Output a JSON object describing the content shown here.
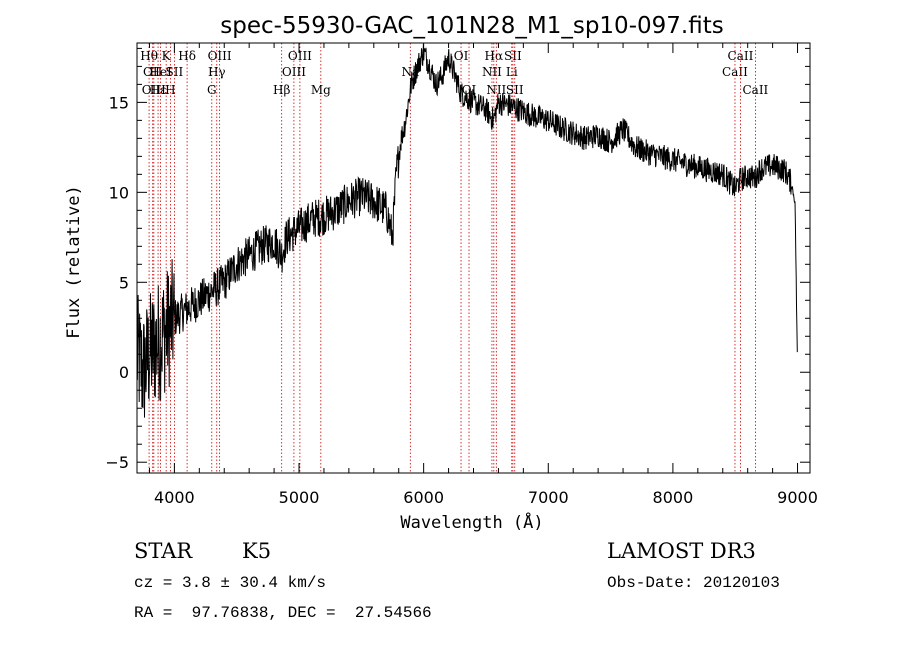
{
  "chart_data": {
    "type": "line",
    "title": "spec-55930-GAC_101N28_M1_sp10-097.fits",
    "xlabel": "Wavelength (Å)",
    "ylabel": "Flux (relative)",
    "xlim": [
      3700,
      9100
    ],
    "ylim": [
      -5.6,
      18.3
    ],
    "x_ticks": [
      4000,
      5000,
      6000,
      7000,
      8000,
      9000
    ],
    "y_ticks": [
      -5,
      0,
      5,
      10,
      15
    ],
    "x_tick_labels": [
      "4000",
      "5000",
      "6000",
      "7000",
      "8000",
      "9000"
    ],
    "y_tick_labels": [
      "−5",
      "0",
      "5",
      "10",
      "15"
    ],
    "series": [
      {
        "name": "flux",
        "x": [
          3700,
          3750,
          3800,
          3850,
          3900,
          3950,
          4000,
          4100,
          4200,
          4300,
          4400,
          4500,
          4600,
          4700,
          4800,
          4860,
          4900,
          5000,
          5100,
          5200,
          5300,
          5400,
          5500,
          5600,
          5700,
          5750,
          5780,
          5820,
          5850,
          5900,
          5950,
          6000,
          6050,
          6100,
          6150,
          6200,
          6300,
          6400,
          6500,
          6560,
          6600,
          6700,
          6800,
          6900,
          7000,
          7100,
          7200,
          7300,
          7400,
          7500,
          7600,
          7700,
          7800,
          7900,
          8000,
          8100,
          8200,
          8300,
          8400,
          8500,
          8540,
          8600,
          8660,
          8700,
          8800,
          8900,
          8950,
          8980,
          9000
        ],
        "y": [
          1.0,
          0.0,
          1.0,
          1.5,
          2.0,
          2.5,
          3.0,
          3.5,
          4.0,
          4.5,
          5.0,
          6.0,
          6.5,
          7.0,
          7.3,
          6.5,
          7.5,
          8.0,
          8.5,
          8.7,
          9.0,
          9.5,
          9.8,
          9.5,
          9.0,
          7.5,
          11.0,
          13.0,
          13.8,
          16.0,
          17.0,
          17.8,
          17.0,
          16.0,
          16.5,
          17.5,
          15.5,
          15.0,
          14.6,
          14.0,
          15.0,
          14.8,
          14.5,
          14.2,
          14.0,
          13.6,
          13.3,
          13.0,
          13.2,
          12.8,
          13.5,
          12.5,
          12.2,
          12.0,
          11.8,
          11.6,
          11.4,
          11.2,
          11.0,
          10.2,
          10.7,
          10.9,
          10.8,
          11.3,
          11.5,
          11.2,
          10.5,
          9.5,
          0.0
        ]
      }
    ],
    "spectral_lines": [
      {
        "x": 3797,
        "label": "Hθ",
        "row": 0
      },
      {
        "x": 3826,
        "label": "OII",
        "row": 1
      },
      {
        "x": 3835,
        "label": "OIII",
        "row": 2
      },
      {
        "x": 3869,
        "label": "Hε",
        "row": 2
      },
      {
        "x": 3889,
        "label": "HeI",
        "row": 1
      },
      {
        "x": 3934,
        "label": "K",
        "row": 0
      },
      {
        "x": 3968,
        "label": "H",
        "row": 2
      },
      {
        "x": 4000,
        "label": "SII",
        "row": 1
      },
      {
        "x": 4102,
        "label": "Hδ",
        "row": 0
      },
      {
        "x": 4300,
        "label": "G",
        "row": 2
      },
      {
        "x": 4340,
        "label": "Hγ",
        "row": 1
      },
      {
        "x": 4363,
        "label": "OIII",
        "row": 0
      },
      {
        "x": 4861,
        "label": "Hβ",
        "row": 2
      },
      {
        "x": 4959,
        "label": "OIII",
        "row": 1
      },
      {
        "x": 5007,
        "label": "OIII",
        "row": 0
      },
      {
        "x": 5175,
        "label": "Mg",
        "row": 2
      },
      {
        "x": 5893,
        "label": "Na",
        "row": 1
      },
      {
        "x": 6300,
        "label": "OI",
        "row": 0
      },
      {
        "x": 6364,
        "label": "OI",
        "row": 2
      },
      {
        "x": 6548,
        "label": "NII",
        "row": 1
      },
      {
        "x": 6563,
        "label": "Hα",
        "row": 0
      },
      {
        "x": 6583,
        "label": "NII",
        "row": 2
      },
      {
        "x": 6707,
        "label": "Li",
        "row": 1
      },
      {
        "x": 6716,
        "label": "SII",
        "row": 0
      },
      {
        "x": 6731,
        "label": "SII",
        "row": 2
      },
      {
        "x": 8498,
        "label": "CaII",
        "row": 1
      },
      {
        "x": 8542,
        "label": "CaII",
        "row": 0
      },
      {
        "x": 8662,
        "label": "CaII",
        "row": 2
      }
    ]
  },
  "info": {
    "object_class": "STAR",
    "subclass": "K5",
    "survey": "LAMOST DR3",
    "redshift": "cz = 3.8 ± 30.4 km/s",
    "obs_date": "Obs-Date: 20120103",
    "coords": "RA =  97.76838, DEC =  27.54566"
  },
  "colors": {
    "spectrum": "#000000",
    "line_markers": "#cc0000",
    "axes": "#000000"
  }
}
